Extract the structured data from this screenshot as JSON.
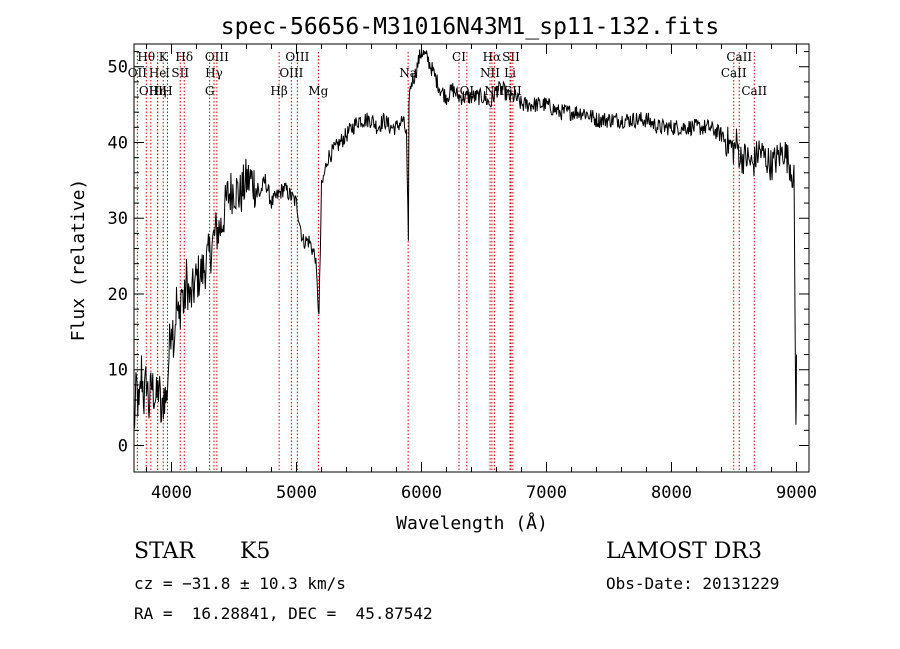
{
  "chart_data": {
    "type": "line",
    "title": "spec-56656-M31016N43M1_sp11-132.fits",
    "xlabel": "Wavelength (Å)",
    "ylabel": "Flux (relative)",
    "xlim": [
      3700,
      9100
    ],
    "ylim": [
      -3.5,
      53
    ],
    "xticks": [
      4000,
      5000,
      6000,
      7000,
      8000,
      9000
    ],
    "yticks": [
      0,
      10,
      20,
      30,
      40,
      50
    ],
    "grid": false,
    "line_color": "#000000",
    "marker_color": "#cc0000",
    "spectrum": {
      "x": [
        3700,
        3720,
        3740,
        3760,
        3780,
        3800,
        3820,
        3840,
        3860,
        3880,
        3900,
        3920,
        3940,
        3960,
        3980,
        4000,
        4020,
        4040,
        4060,
        4080,
        4100,
        4120,
        4150,
        4200,
        4250,
        4300,
        4350,
        4400,
        4450,
        4500,
        4550,
        4600,
        4650,
        4700,
        4750,
        4800,
        4850,
        4900,
        4950,
        5000,
        5050,
        5100,
        5150,
        5180,
        5200,
        5250,
        5300,
        5350,
        5400,
        5450,
        5500,
        5550,
        5600,
        5650,
        5700,
        5750,
        5800,
        5850,
        5880,
        5895,
        5900,
        5910,
        5920,
        5950,
        5980,
        6000,
        6050,
        6100,
        6150,
        6200,
        6250,
        6300,
        6350,
        6400,
        6450,
        6500,
        6550,
        6600,
        6650,
        6700,
        6750,
        6800,
        6850,
        6900,
        6950,
        7000,
        7100,
        7200,
        7300,
        7400,
        7500,
        7600,
        7700,
        7800,
        7900,
        8000,
        8100,
        8200,
        8300,
        8400,
        8450,
        8500,
        8520,
        8550,
        8600,
        8650,
        8700,
        8750,
        8800,
        8850,
        8900,
        8950,
        8980,
        8995,
        9000
      ],
      "y": [
        2,
        8,
        4,
        10,
        6,
        9,
        5,
        8,
        7,
        6,
        8,
        3,
        7,
        6,
        12,
        17,
        14,
        19,
        16,
        21,
        18,
        22,
        19,
        22,
        23,
        25,
        28,
        29,
        33,
        34,
        33,
        35,
        35,
        33,
        35,
        32,
        33,
        34,
        33,
        32,
        27,
        27,
        25,
        17,
        34,
        38,
        39,
        40,
        41,
        42,
        43,
        43,
        43,
        42,
        43,
        42,
        42,
        43,
        41,
        26,
        46,
        47,
        48,
        49,
        51,
        52,
        51,
        49,
        47,
        46,
        47,
        46,
        46,
        46,
        46,
        46,
        45,
        47,
        47,
        46,
        46,
        45,
        45,
        45,
        45,
        45,
        44,
        44,
        44,
        43,
        43,
        43,
        43,
        43,
        42,
        42,
        42,
        42,
        42,
        41,
        40,
        39,
        40,
        38,
        38,
        37,
        39,
        38,
        37,
        38,
        39,
        37,
        35,
        2,
        12
      ]
    },
    "lines": [
      {
        "label": "Hθ",
        "x": 3798,
        "row": 0
      },
      {
        "label": "K",
        "x": 3934,
        "row": 0
      },
      {
        "label": "Hδ",
        "x": 4102,
        "row": 0
      },
      {
        "label": "OIII",
        "x": 4363,
        "row": 0
      },
      {
        "label": "OIII",
        "x": 5007,
        "row": 0
      },
      {
        "label": "CI",
        "x": 6300,
        "row": 0
      },
      {
        "label": "Hα",
        "x": 6563,
        "row": 0
      },
      {
        "label": "SII",
        "x": 6716,
        "row": 0
      },
      {
        "label": "CaII",
        "x": 8542,
        "row": 0
      },
      {
        "label": "OII",
        "x": 3727,
        "row": 1
      },
      {
        "label": "He",
        "x": 3889,
        "row": 1
      },
      {
        "label": "I",
        "x": 3968,
        "row": 1
      },
      {
        "label": "SII",
        "x": 4070,
        "row": 1
      },
      {
        "label": "Hγ",
        "x": 4340,
        "row": 1
      },
      {
        "label": "OIII",
        "x": 4959,
        "row": 1
      },
      {
        "label": "Na",
        "x": 5893,
        "row": 1
      },
      {
        "label": "NII",
        "x": 6548,
        "row": 1
      },
      {
        "label": "Li",
        "x": 6708,
        "row": 1
      },
      {
        "label": "CaII",
        "x": 8498,
        "row": 1
      },
      {
        "label": "OIII",
        "x": 3835,
        "row": 2
      },
      {
        "label": "Hη",
        "x": 3889,
        "row": 2
      },
      {
        "label": "H",
        "x": 3968,
        "row": 2
      },
      {
        "label": "G",
        "x": 4305,
        "row": 2
      },
      {
        "label": "Hβ",
        "x": 4861,
        "row": 2
      },
      {
        "label": "Mg",
        "x": 5175,
        "row": 2
      },
      {
        "label": "OI",
        "x": 6363,
        "row": 2
      },
      {
        "label": "NII",
        "x": 6583,
        "row": 2
      },
      {
        "label": "SII",
        "x": 6731,
        "row": 2
      },
      {
        "label": "CaII",
        "x": 8662,
        "row": 2
      }
    ]
  },
  "info": {
    "class": "STAR",
    "subclass": "K5",
    "survey": "LAMOST DR3",
    "cz": "cz = −31.8 ± 10.3 km/s",
    "obs_date": "Obs-Date: 20131229",
    "coords": "RA =  16.28841, DEC =  45.87542"
  }
}
